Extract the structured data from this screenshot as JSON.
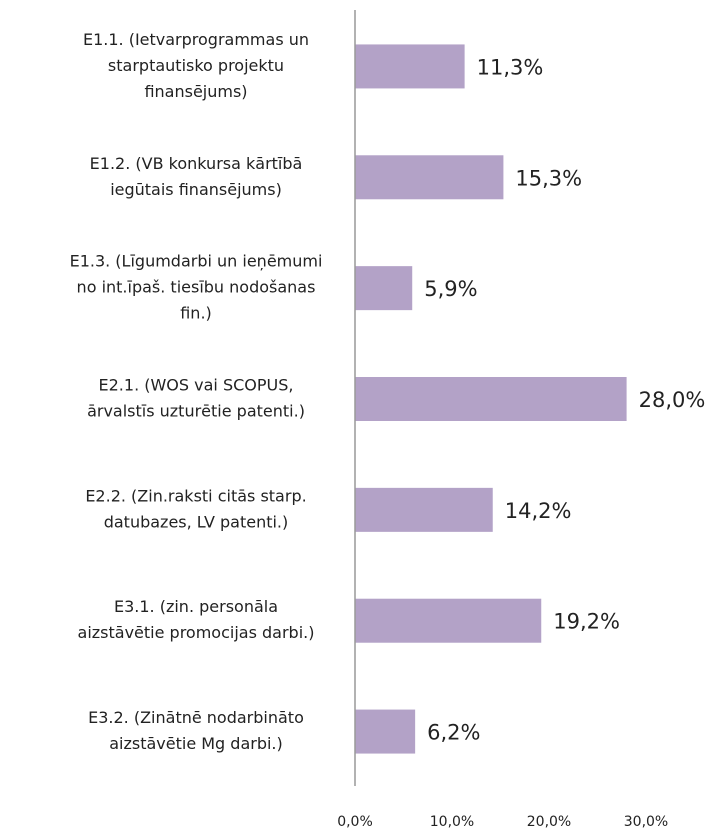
{
  "chart_data": {
    "type": "barh",
    "categories": [
      [
        "E1.1. (Ietvarprogrammas un",
        "starptautisko projektu",
        "finansējums)"
      ],
      [
        "E1.2. (VB konkursa kārtībā",
        "iegūtais finansējums)"
      ],
      [
        "E1.3. (Līgumdarbi un ieņēmumi",
        "no int.īpaš. tiesību nodošanas",
        "fin.)"
      ],
      [
        "E2.1. (WOS vai SCOPUS,",
        "ārvalstīs uzturētie patenti.)"
      ],
      [
        "E2.2. (Zin.raksti citās starp.",
        "datubazes, LV patenti.)"
      ],
      [
        "E3.1. (zin. personāla",
        "aizstāvētie promocijas darbi.)"
      ],
      [
        "E3.2. (Zinātnē nodarbināto",
        "aizstāvētie Mg darbi.)"
      ]
    ],
    "values": [
      11.3,
      15.3,
      5.9,
      28.0,
      14.2,
      19.2,
      6.2
    ],
    "value_labels": [
      "11,3%",
      "15,3%",
      "5,9%",
      "28,0%",
      "14,2%",
      "19,2%",
      "6,2%"
    ],
    "color": "#b3a2c7",
    "xlim": [
      0,
      30
    ],
    "xticks": [
      {
        "value": 0,
        "label": "0,0%"
      },
      {
        "value": 10,
        "label": "10,0%"
      },
      {
        "value": 20,
        "label": "20,0%"
      },
      {
        "value": 30,
        "label": "30,0%"
      }
    ],
    "grid": false
  }
}
